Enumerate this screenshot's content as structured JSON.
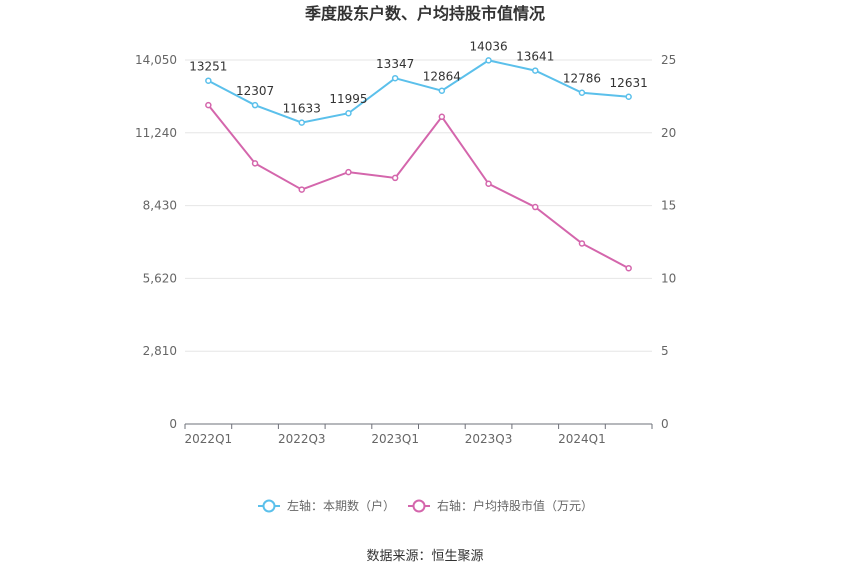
{
  "chart_data": {
    "type": "line",
    "title": "季度股东户数、户均持股市值情况",
    "x": [
      "2022Q1",
      "2022Q2",
      "2022Q3",
      "2022Q4",
      "2023Q1",
      "2023Q2",
      "2023Q3",
      "2023Q4",
      "2024Q1",
      "2024Q2"
    ],
    "x_tick_labels": [
      "2022Q1",
      "2022Q3",
      "2023Q1",
      "2023Q3",
      "2024Q1"
    ],
    "left_axis": {
      "ylim": [
        0,
        14050
      ],
      "ticks": [
        "0",
        "2,810",
        "5,620",
        "8,430",
        "11,240",
        "14,050"
      ]
    },
    "right_axis": {
      "ylim": [
        0,
        25
      ],
      "ticks": [
        "0",
        "5",
        "10",
        "15",
        "20",
        "25"
      ]
    },
    "series": [
      {
        "name": "左轴：本期数（户）",
        "axis": "left",
        "color": "#5bc0eb",
        "values": [
          13251,
          12307,
          11633,
          11995,
          13347,
          12864,
          14036,
          13641,
          12786,
          12631
        ],
        "labels": [
          "13251",
          "12307",
          "11633",
          "11995",
          "13347",
          "12864",
          "14036",
          "13641",
          "12786",
          "12631"
        ]
      },
      {
        "name": "右轴：户均持股市值（万元）",
        "axis": "right",
        "color": "#d466ac",
        "values": [
          21.9,
          17.9,
          16.1,
          17.3,
          16.9,
          21.1,
          16.5,
          14.9,
          12.4,
          10.7
        ]
      }
    ],
    "grid": true,
    "legend_position": "bottom"
  },
  "source": "数据来源：恒生聚源"
}
